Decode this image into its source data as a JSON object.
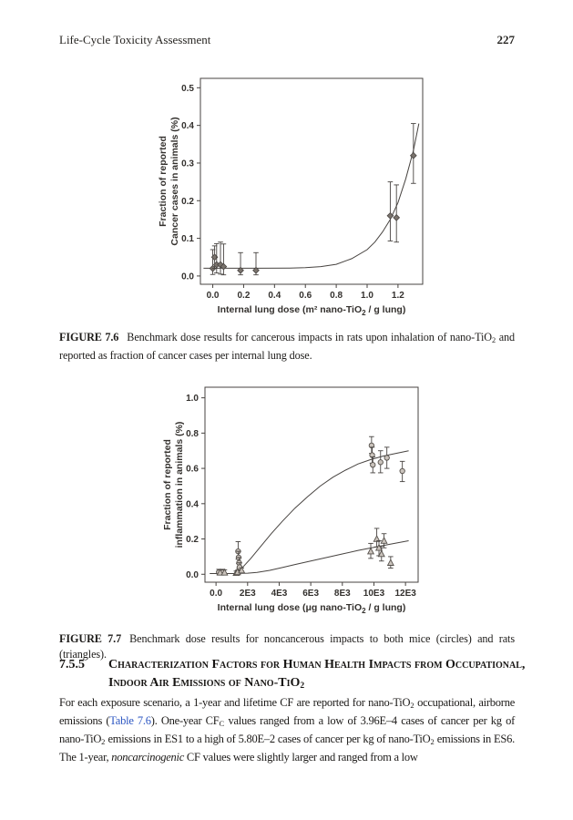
{
  "colors": {
    "link": "#2b55c2",
    "text": "#1c1a18",
    "chart_ink": "#474340"
  },
  "header": {
    "running_title": "Life-Cycle Toxicity Assessment",
    "page_number": "227"
  },
  "figures": [
    {
      "caption_segments": [
        {
          "t": "FIGURE 7.6",
          "b": true,
          "gap": true
        },
        {
          "t": "Benchmark dose results for cancerous impacts in rats upon inhalation of nano-TiO"
        },
        {
          "t": "2",
          "sub": true
        },
        {
          "t": " and reported as fraction of cancer cases per internal lung dose."
        }
      ]
    },
    {
      "caption_segments": [
        {
          "t": "FIGURE 7.7",
          "b": true,
          "gap": true
        },
        {
          "t": "Benchmark dose results for noncancerous impacts to both mice (circles) and rats (triangles)."
        }
      ]
    }
  ],
  "section": {
    "number": "7.5.5",
    "title_lines": [
      [
        {
          "t": "Characterization Factors for Human Health Impacts from Occupational,",
          "sc": true
        }
      ],
      [
        {
          "t": "Indoor Air Emissions of Nano-TiO",
          "sc": true
        },
        {
          "t": "2",
          "sub": true
        }
      ]
    ]
  },
  "paragraph": {
    "segments": [
      {
        "t": "For each exposure scenario, a 1-year and lifetime CF are reported for nano-TiO"
      },
      {
        "t": "2",
        "sub": true
      },
      {
        "t": " occupational, airborne emissions ("
      },
      {
        "t": "Table 7.6",
        "link": true,
        "name": "table-7-6-link"
      },
      {
        "t": "). One-year CF"
      },
      {
        "t": "C",
        "sub": true
      },
      {
        "t": " values ranged from a low of 3.96E–4 cases of cancer per kg of nano-TiO"
      },
      {
        "t": "2",
        "sub": true
      },
      {
        "t": " emissions in ES1 to a high of 5.80E–2 cases of cancer per kg of nano-TiO"
      },
      {
        "t": "2",
        "sub": true
      },
      {
        "t": " emissions in ES6. The 1-year, "
      },
      {
        "t": "noncarcinogenic",
        "i": true
      },
      {
        "t": " CF values were slightly larger and ranged from a low"
      }
    ]
  },
  "chart_data": [
    {
      "type": "scatter",
      "figure": "7.6",
      "title": "",
      "xlabel_segments": [
        {
          "t": "Internal lung dose (m² nano-TiO"
        },
        {
          "t": "2",
          "sub": true
        },
        {
          "t": " / g lung)"
        }
      ],
      "ylabel_lines": [
        "Fraction of reported",
        "Cancer cases in animals (%)"
      ],
      "xlim": [
        -0.08,
        1.36
      ],
      "ylim": [
        -0.022,
        0.525
      ],
      "xticks": [
        0,
        0.2,
        0.4,
        0.6,
        0.8,
        1.0,
        1.2
      ],
      "xtick_labels": [
        "0.0",
        "0.2",
        "0.4",
        "0.6",
        "0.8",
        "1.0",
        "1.2"
      ],
      "yticks": [
        0,
        0.1,
        0.2,
        0.3,
        0.4,
        0.5
      ],
      "ytick_labels": [
        "0.0",
        "0.1",
        "0.2",
        "0.3",
        "0.4",
        "0.5"
      ],
      "grid": false,
      "legend": "none",
      "ink": "#474340",
      "curves": [
        {
          "name": "benchmark-dose-fit-curve",
          "points": [
            [
              -0.06,
              0.0205
            ],
            [
              0.1,
              0.0205
            ],
            [
              0.3,
              0.0205
            ],
            [
              0.5,
              0.021
            ],
            [
              0.6,
              0.022
            ],
            [
              0.7,
              0.025
            ],
            [
              0.8,
              0.031
            ],
            [
              0.9,
              0.046
            ],
            [
              1.0,
              0.07
            ],
            [
              1.05,
              0.09
            ],
            [
              1.1,
              0.117
            ],
            [
              1.15,
              0.15
            ],
            [
              1.2,
              0.195
            ],
            [
              1.25,
              0.258
            ],
            [
              1.3,
              0.333
            ],
            [
              1.335,
              0.405
            ]
          ]
        }
      ],
      "series": [
        {
          "name": "rats cancer data",
          "marker": "diamond",
          "fill": "#7a736d",
          "stroke": "#474340",
          "points": [
            [
              0.0,
              0.02,
              0.004,
              0.07
            ],
            [
              0.012,
              0.05,
              0.02,
              0.08
            ],
            [
              0.025,
              0.03,
              0.008,
              0.086
            ],
            [
              0.05,
              0.03,
              0.005,
              0.09
            ],
            [
              0.07,
              0.025,
              0.003,
              0.085
            ],
            [
              0.18,
              0.015,
              0.003,
              0.062
            ],
            [
              0.28,
              0.015,
              0.003,
              0.062
            ],
            [
              1.15,
              0.16,
              0.093,
              0.25
            ],
            [
              1.19,
              0.155,
              0.09,
              0.242
            ],
            [
              1.3,
              0.32,
              0.246,
              0.405
            ]
          ]
        }
      ]
    },
    {
      "type": "scatter",
      "figure": "7.7",
      "title": "",
      "xlabel_segments": [
        {
          "t": "Internal lung dose (μg nano-TiO"
        },
        {
          "t": "2",
          "sub": true
        },
        {
          "t": " / g lung)"
        }
      ],
      "ylabel_lines": [
        "Fraction of reported",
        "inflammation in animals (%)"
      ],
      "xlim": [
        -700,
        12800
      ],
      "ylim": [
        -0.045,
        1.06
      ],
      "xticks": [
        0,
        2000,
        4000,
        6000,
        8000,
        10000,
        12000
      ],
      "xtick_labels": [
        "0.0",
        "2E3",
        "4E3",
        "6E3",
        "8E3",
        "10E3",
        "12E3"
      ],
      "yticks": [
        0,
        0.2,
        0.4,
        0.6,
        0.8,
        1.0
      ],
      "ytick_labels": [
        "0.0",
        "0.2",
        "0.4",
        "0.6",
        "0.8",
        "1.0"
      ],
      "grid": false,
      "legend": "none",
      "ink": "#474340",
      "curves": [
        {
          "name": "mice-fit-curve",
          "points": [
            [
              1250,
              0.006
            ],
            [
              1500,
              0.02
            ],
            [
              1800,
              0.05
            ],
            [
              2200,
              0.09
            ],
            [
              2800,
              0.155
            ],
            [
              3500,
              0.23
            ],
            [
              4200,
              0.3
            ],
            [
              5000,
              0.375
            ],
            [
              5800,
              0.44
            ],
            [
              6600,
              0.5
            ],
            [
              7400,
              0.55
            ],
            [
              8200,
              0.59
            ],
            [
              9000,
              0.625
            ],
            [
              9800,
              0.65
            ],
            [
              10600,
              0.67
            ],
            [
              11400,
              0.685
            ],
            [
              12200,
              0.7
            ]
          ]
        },
        {
          "name": "rats-fit-curve",
          "points": [
            [
              -400,
              0.004
            ],
            [
              1000,
              0.004
            ],
            [
              2000,
              0.006
            ],
            [
              2600,
              0.01
            ],
            [
              3400,
              0.022
            ],
            [
              4200,
              0.038
            ],
            [
              5000,
              0.055
            ],
            [
              6000,
              0.075
            ],
            [
              7000,
              0.095
            ],
            [
              8000,
              0.115
            ],
            [
              9000,
              0.135
            ],
            [
              10000,
              0.153
            ],
            [
              11000,
              0.17
            ],
            [
              12200,
              0.19
            ]
          ]
        }
      ],
      "series": [
        {
          "name": "mice (circles)",
          "marker": "circle",
          "fill": "#cac3bc",
          "stroke": "#55504b",
          "points": [
            [
              180,
              0.012,
              0.002,
              0.028
            ],
            [
              430,
              0.012,
              0.002,
              0.028
            ],
            [
              1400,
              0.13,
              0.085,
              0.185
            ],
            [
              1430,
              0.095,
              0.06,
              0.13
            ],
            [
              1460,
              0.065,
              0.035,
              0.095
            ],
            [
              1490,
              0.04,
              0.015,
              0.065
            ],
            [
              9850,
              0.73,
              0.685,
              0.78
            ],
            [
              9890,
              0.675,
              0.63,
              0.72
            ],
            [
              9930,
              0.62,
              0.575,
              0.665
            ],
            [
              10420,
              0.635,
              0.575,
              0.7
            ],
            [
              10820,
              0.66,
              0.6,
              0.72
            ],
            [
              11800,
              0.585,
              0.525,
              0.64
            ]
          ]
        },
        {
          "name": "rats (triangles)",
          "marker": "triangle",
          "fill": "#cac3bc",
          "stroke": "#55504b",
          "points": [
            [
              260,
              0.01,
              0.0,
              0.025
            ],
            [
              540,
              0.01,
              0.0,
              0.025
            ],
            [
              1280,
              0.008,
              0.002,
              0.018
            ],
            [
              1360,
              0.012,
              0.004,
              0.022
            ],
            [
              1620,
              0.022,
              0.01,
              0.036
            ],
            [
              9800,
              0.13,
              0.09,
              0.175
            ],
            [
              10180,
              0.2,
              0.155,
              0.26
            ],
            [
              10320,
              0.15,
              0.105,
              0.19
            ],
            [
              10480,
              0.115,
              0.075,
              0.16
            ],
            [
              10640,
              0.19,
              0.15,
              0.23
            ],
            [
              11060,
              0.065,
              0.035,
              0.1
            ]
          ]
        }
      ]
    }
  ]
}
